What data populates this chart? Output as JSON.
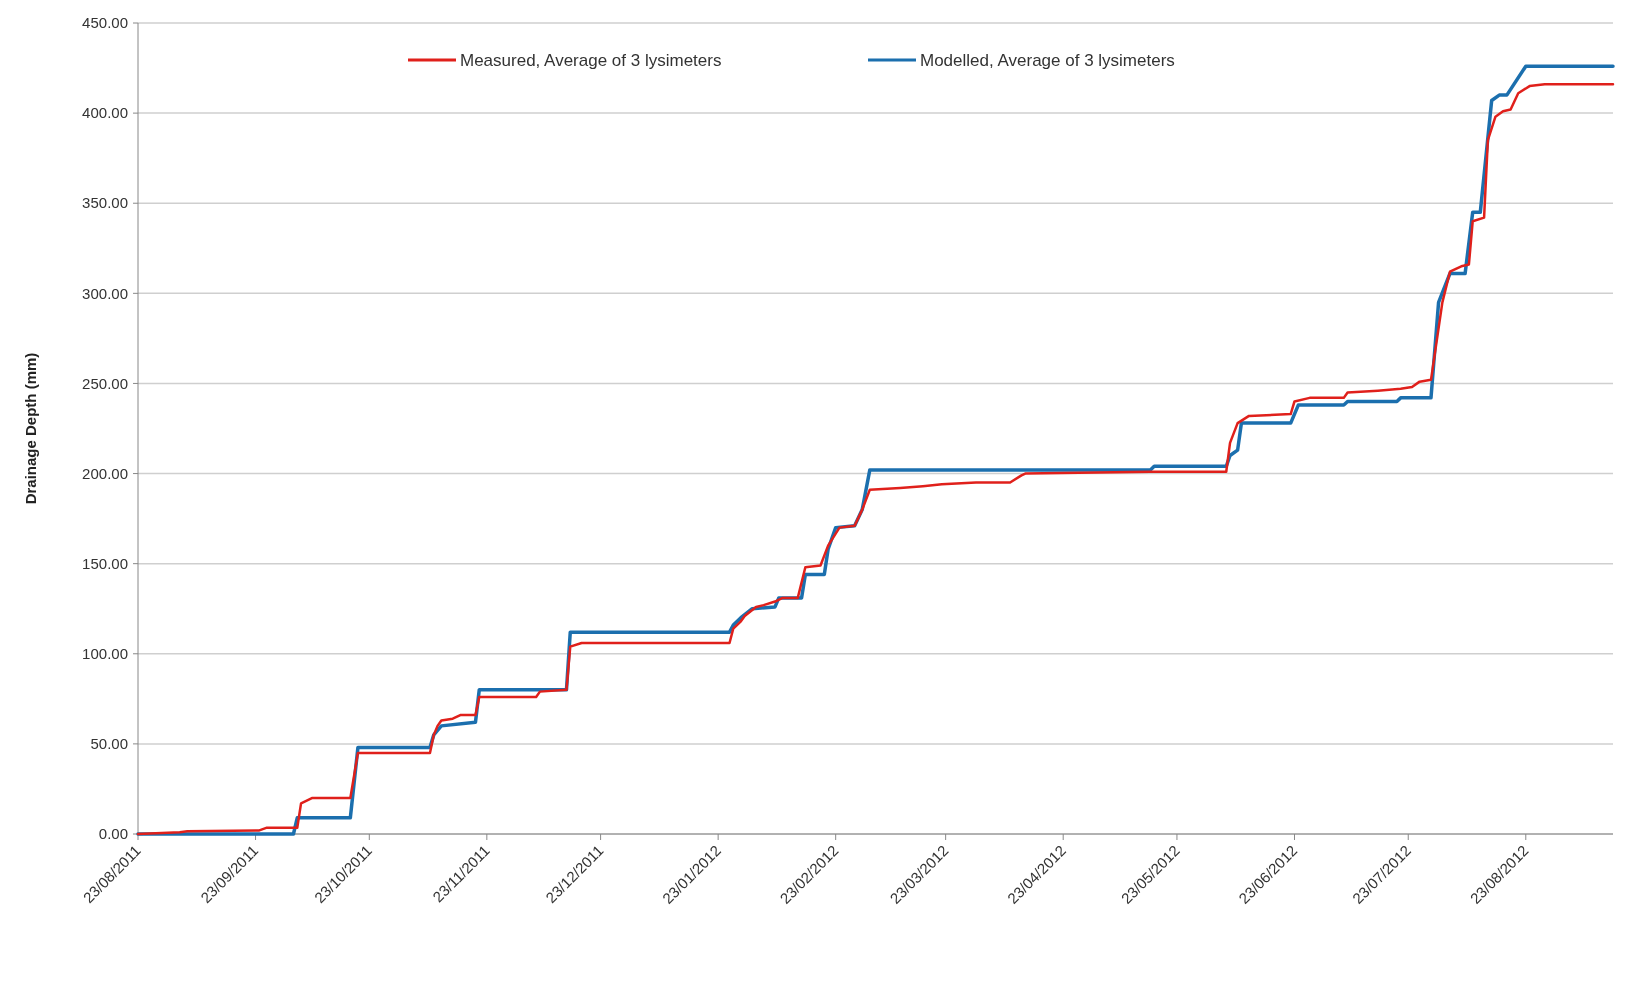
{
  "chart_data": {
    "type": "line",
    "ylabel": "Drainage Depth (mm)",
    "xlim": [
      "2011-08-23",
      "2012-09-15"
    ],
    "xticks": [
      {
        "value": "2011-08-23",
        "label": "23/08/2011"
      },
      {
        "value": "2011-09-23",
        "label": "23/09/2011"
      },
      {
        "value": "2011-10-23",
        "label": "23/10/2011"
      },
      {
        "value": "2011-11-23",
        "label": "23/11/2011"
      },
      {
        "value": "2011-12-23",
        "label": "23/12/2011"
      },
      {
        "value": "2012-01-23",
        "label": "23/01/2012"
      },
      {
        "value": "2012-02-23",
        "label": "23/02/2012"
      },
      {
        "value": "2012-03-23",
        "label": "23/03/2012"
      },
      {
        "value": "2012-04-23",
        "label": "23/04/2012"
      },
      {
        "value": "2012-05-23",
        "label": "23/05/2012"
      },
      {
        "value": "2012-06-23",
        "label": "23/06/2012"
      },
      {
        "value": "2012-07-23",
        "label": "23/07/2012"
      },
      {
        "value": "2012-08-23",
        "label": "23/08/2012"
      }
    ],
    "ylim": [
      0,
      450
    ],
    "yticks": [
      {
        "value": 0,
        "label": "0.00"
      },
      {
        "value": 50,
        "label": "50.00"
      },
      {
        "value": 100,
        "label": "100.00"
      },
      {
        "value": 150,
        "label": "150.00"
      },
      {
        "value": 200,
        "label": "200.00"
      },
      {
        "value": 250,
        "label": "250.00"
      },
      {
        "value": 300,
        "label": "300.00"
      },
      {
        "value": 350,
        "label": "350.00"
      },
      {
        "value": 400,
        "label": "400.00"
      },
      {
        "value": 450,
        "label": "450.00"
      }
    ],
    "grid": "y",
    "legend": "top",
    "marker": "none",
    "line_style": "solid",
    "series": [
      {
        "name": "Measured, Average of 3 lysimeters",
        "color": "#e0201b",
        "x": [
          "2011-08-23",
          "2011-09-03",
          "2011-09-05",
          "2011-09-24",
          "2011-09-26",
          "2011-10-04",
          "2011-10-05",
          "2011-10-08",
          "2011-10-18",
          "2011-10-20",
          "2011-11-08",
          "2011-11-09",
          "2011-11-10",
          "2011-11-11",
          "2011-11-14",
          "2011-11-16",
          "2011-11-20",
          "2011-11-21",
          "2011-12-06",
          "2011-12-07",
          "2011-12-14",
          "2011-12-15",
          "2011-12-18",
          "2012-01-26",
          "2012-01-27",
          "2012-01-29",
          "2012-01-30",
          "2012-02-02",
          "2012-02-04",
          "2012-02-07",
          "2012-02-09",
          "2012-02-13",
          "2012-02-15",
          "2012-02-19",
          "2012-02-21",
          "2012-02-24",
          "2012-02-28",
          "2012-03-01",
          "2012-03-03",
          "2012-03-11",
          "2012-03-17",
          "2012-03-22",
          "2012-03-31",
          "2012-04-09",
          "2012-04-12",
          "2012-04-13",
          "2012-05-16",
          "2012-06-05",
          "2012-06-06",
          "2012-06-08",
          "2012-06-11",
          "2012-06-22",
          "2012-06-23",
          "2012-06-27",
          "2012-07-06",
          "2012-07-07",
          "2012-07-15",
          "2012-07-21",
          "2012-07-24",
          "2012-07-26",
          "2012-07-29",
          "2012-08-01",
          "2012-08-03",
          "2012-08-06",
          "2012-08-08",
          "2012-08-09",
          "2012-08-12",
          "2012-08-13",
          "2012-08-15",
          "2012-08-17",
          "2012-08-19",
          "2012-08-21",
          "2012-08-24",
          "2012-08-28",
          "2012-09-15"
        ],
        "values": [
          0,
          1,
          1.5,
          2,
          3.5,
          3.5,
          17,
          20,
          20,
          45,
          45,
          55,
          60,
          63,
          64,
          66,
          66,
          76,
          76,
          79,
          80,
          104,
          106,
          106,
          114,
          118,
          121,
          126,
          127,
          129,
          131,
          131,
          148,
          149,
          160,
          170,
          171,
          180,
          191,
          192,
          193,
          194,
          195,
          195,
          199,
          200,
          201,
          201,
          217,
          228,
          232,
          233,
          240,
          242,
          242,
          245,
          246,
          247,
          248,
          251,
          252,
          295,
          312,
          315,
          316,
          340,
          342,
          385,
          398,
          401,
          402,
          411,
          415,
          416,
          416
        ]
      },
      {
        "name": "Modelled, Average of 3 lysimeters",
        "color": "#1b6fae",
        "x": [
          "2011-08-23",
          "2011-10-03",
          "2011-10-04",
          "2011-10-18",
          "2011-10-20",
          "2011-11-08",
          "2011-11-09",
          "2011-11-11",
          "2011-11-20",
          "2011-11-21",
          "2011-12-14",
          "2011-12-15",
          "2012-01-26",
          "2012-01-27",
          "2012-01-29",
          "2012-02-01",
          "2012-02-07",
          "2012-02-08",
          "2012-02-14",
          "2012-02-15",
          "2012-02-20",
          "2012-02-21",
          "2012-02-23",
          "2012-02-28",
          "2012-03-01",
          "2012-03-03",
          "2012-05-16",
          "2012-05-17",
          "2012-06-05",
          "2012-06-06",
          "2012-06-08",
          "2012-06-09",
          "2012-06-22",
          "2012-06-24",
          "2012-07-06",
          "2012-07-07",
          "2012-07-20",
          "2012-07-21",
          "2012-07-29",
          "2012-07-31",
          "2012-08-03",
          "2012-08-07",
          "2012-08-09",
          "2012-08-11",
          "2012-08-14",
          "2012-08-16",
          "2012-08-18",
          "2012-08-23",
          "2012-09-15"
        ],
        "values": [
          0,
          0,
          9,
          9,
          48,
          48,
          55,
          60,
          62,
          80,
          80,
          112,
          112,
          116,
          120,
          125,
          126,
          131,
          131,
          144,
          144,
          158,
          170,
          171,
          180,
          202,
          202,
          204,
          204,
          210,
          213,
          228,
          228,
          238,
          238,
          240,
          240,
          242,
          242,
          295,
          311,
          311,
          345,
          345,
          407,
          410,
          410,
          426,
          426
        ]
      }
    ]
  }
}
